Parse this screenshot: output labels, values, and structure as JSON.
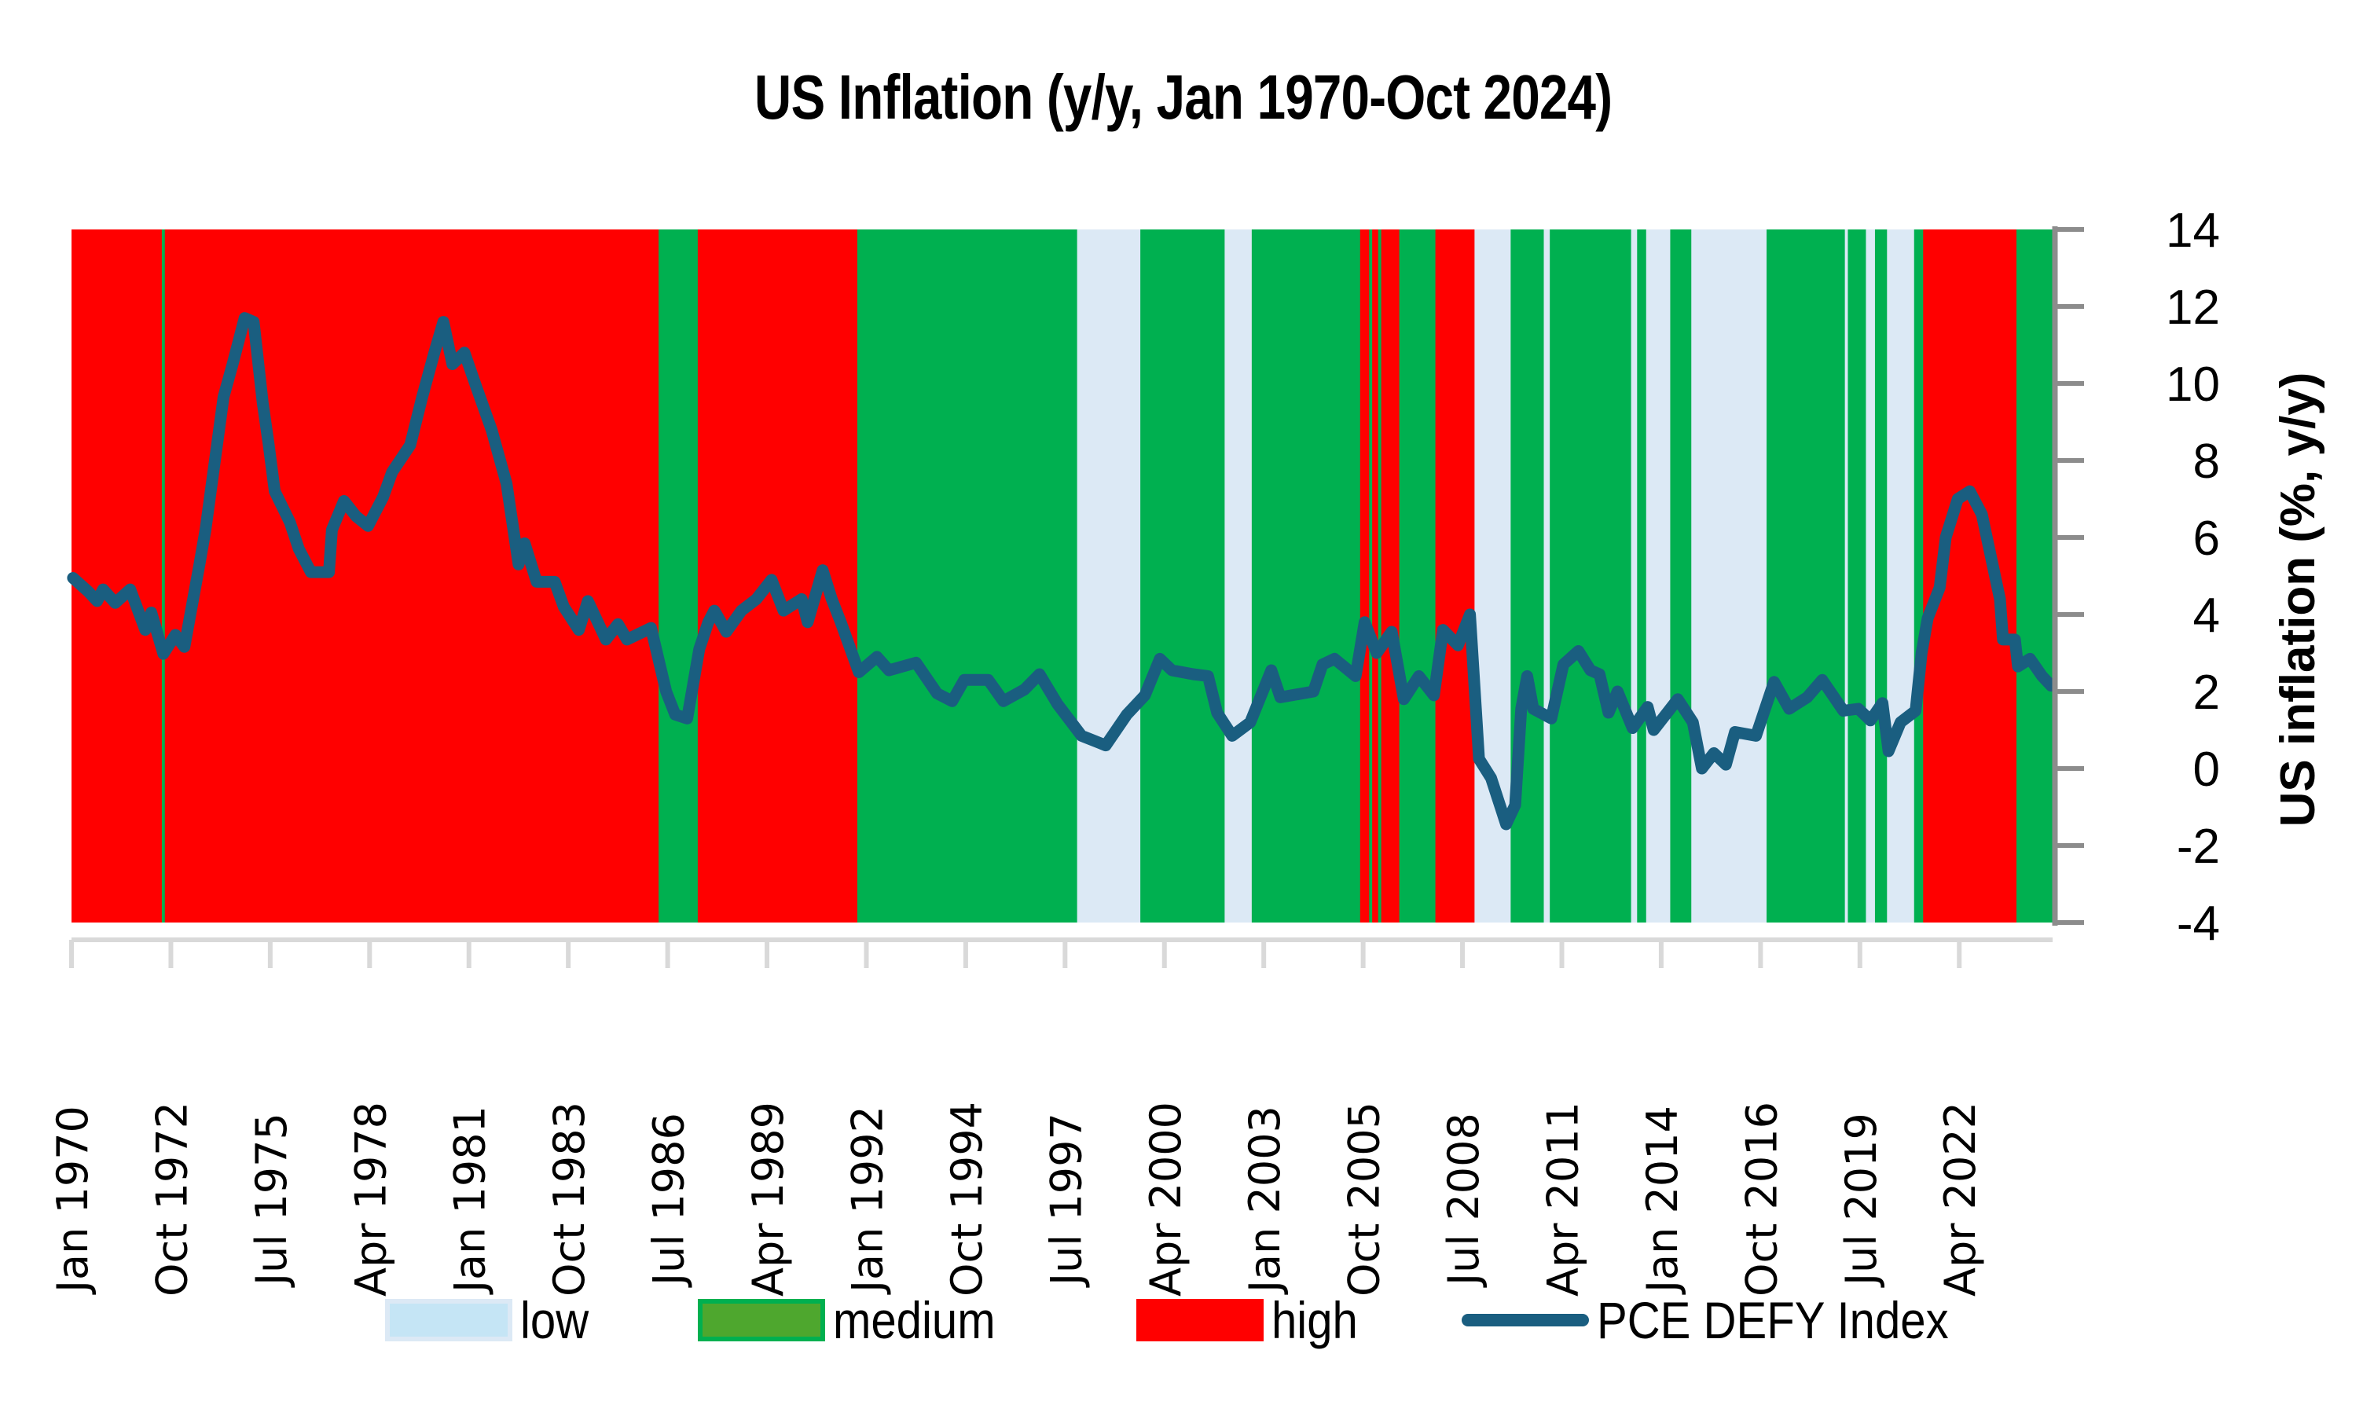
{
  "chart_data": {
    "type": "line",
    "title": "US Inflation (y/y, Jan 1970-Oct 2024)",
    "ylabel": "US inflation (%, y/y)",
    "xlabel": "",
    "y_axis_side": "right",
    "ylim": [
      -4,
      14
    ],
    "yticks": [
      14,
      12,
      10,
      8,
      6,
      4,
      2,
      0,
      -2,
      -4
    ],
    "x_start": "Jan 1970",
    "x_end": "Oct 2024",
    "n_months": 658,
    "xtick_every_months": 33,
    "xtick_labels": [
      "Jan 1970",
      "Oct 1972",
      "Jul 1975",
      "Apr 1978",
      "Jan 1981",
      "Oct 1983",
      "Jul 1986",
      "Apr 1989",
      "Jan 1992",
      "Oct 1994",
      "Jul 1997",
      "Apr 2000",
      "Jan 2003",
      "Oct 2005",
      "Jul 2008",
      "Apr 2011",
      "Jan 2014",
      "Oct 2016",
      "Jul 2019",
      "Apr 2022"
    ],
    "legend_placement": "bottom",
    "legend": [
      {
        "key": "low",
        "label": "low",
        "fill": "#C5E5F5",
        "border": "#DCE9F5",
        "band_color": "#DCE9F5"
      },
      {
        "key": "medium",
        "label": "medium",
        "fill": "#4EA72E",
        "border": "#00B050",
        "band_color": "#00B050"
      },
      {
        "key": "high",
        "label": "high",
        "fill": "#FF0000",
        "border": "#FF0000",
        "band_color": "#FF0000"
      },
      {
        "key": "line",
        "label": "PCE DEFY Index",
        "color": "#1A5E80"
      }
    ],
    "regime_bands": [
      [
        0,
        29,
        "high"
      ],
      [
        30,
        30,
        "medium"
      ],
      [
        31,
        194,
        "high"
      ],
      [
        195,
        207,
        "medium"
      ],
      [
        208,
        260,
        "high"
      ],
      [
        261,
        333,
        "medium"
      ],
      [
        334,
        354,
        "low"
      ],
      [
        355,
        382,
        "medium"
      ],
      [
        383,
        391,
        "low"
      ],
      [
        392,
        427,
        "medium"
      ],
      [
        428,
        430,
        "high"
      ],
      [
        431,
        431,
        "medium"
      ],
      [
        432,
        433,
        "high"
      ],
      [
        434,
        434,
        "medium"
      ],
      [
        435,
        440,
        "high"
      ],
      [
        441,
        452,
        "medium"
      ],
      [
        453,
        465,
        "high"
      ],
      [
        466,
        477,
        "low"
      ],
      [
        478,
        488,
        "medium"
      ],
      [
        489,
        490,
        "low"
      ],
      [
        491,
        517,
        "medium"
      ],
      [
        518,
        519,
        "low"
      ],
      [
        520,
        522,
        "medium"
      ],
      [
        523,
        530,
        "low"
      ],
      [
        531,
        537,
        "medium"
      ],
      [
        538,
        562,
        "low"
      ],
      [
        563,
        588,
        "medium"
      ],
      [
        589,
        589,
        "low"
      ],
      [
        590,
        595,
        "medium"
      ],
      [
        596,
        598,
        "low"
      ],
      [
        599,
        602,
        "medium"
      ],
      [
        603,
        611,
        "low"
      ],
      [
        612,
        614,
        "medium"
      ],
      [
        615,
        645,
        "high"
      ],
      [
        646,
        657,
        "medium"
      ]
    ],
    "series": [
      {
        "name": "PCE DEFY Index",
        "color": "#1A5E80",
        "points_month_value": [
          [
            0,
            4.95
          ],
          [
            5,
            4.6
          ],
          [
            8,
            4.35
          ],
          [
            10,
            4.65
          ],
          [
            14,
            4.3
          ],
          [
            19,
            4.65
          ],
          [
            24,
            3.6
          ],
          [
            26,
            4.05
          ],
          [
            30,
            2.98
          ],
          [
            34,
            3.47
          ],
          [
            37,
            3.16
          ],
          [
            42,
            5.3
          ],
          [
            44,
            6.2
          ],
          [
            50,
            9.65
          ],
          [
            53,
            10.5
          ],
          [
            57,
            11.7
          ],
          [
            60,
            11.6
          ],
          [
            63,
            9.5
          ],
          [
            65,
            8.4
          ],
          [
            67,
            7.2
          ],
          [
            72,
            6.4
          ],
          [
            75,
            5.7
          ],
          [
            79,
            5.1
          ],
          [
            85,
            5.1
          ],
          [
            86,
            6.2
          ],
          [
            90,
            6.95
          ],
          [
            94,
            6.55
          ],
          [
            98,
            6.3
          ],
          [
            103,
            7.05
          ],
          [
            106,
            7.7
          ],
          [
            112,
            8.4
          ],
          [
            116,
            9.65
          ],
          [
            120,
            10.8
          ],
          [
            123,
            11.6
          ],
          [
            126,
            10.5
          ],
          [
            130,
            10.8
          ],
          [
            134,
            9.9
          ],
          [
            139,
            8.8
          ],
          [
            144,
            7.4
          ],
          [
            148,
            5.3
          ],
          [
            150,
            5.85
          ],
          [
            154,
            4.85
          ],
          [
            160,
            4.85
          ],
          [
            163,
            4.2
          ],
          [
            168,
            3.6
          ],
          [
            171,
            4.35
          ],
          [
            177,
            3.35
          ],
          [
            181,
            3.75
          ],
          [
            184,
            3.35
          ],
          [
            192,
            3.65
          ],
          [
            197,
            2.0
          ],
          [
            200,
            1.4
          ],
          [
            204,
            1.3
          ],
          [
            208,
            3.1
          ],
          [
            211,
            3.8
          ],
          [
            213,
            4.1
          ],
          [
            217,
            3.55
          ],
          [
            222,
            4.1
          ],
          [
            227,
            4.4
          ],
          [
            232,
            4.9
          ],
          [
            236,
            4.1
          ],
          [
            242,
            4.4
          ],
          [
            244,
            3.8
          ],
          [
            249,
            5.15
          ],
          [
            252,
            4.4
          ],
          [
            255,
            3.8
          ],
          [
            261,
            2.5
          ],
          [
            267,
            2.9
          ],
          [
            271,
            2.55
          ],
          [
            280,
            2.75
          ],
          [
            287,
            1.95
          ],
          [
            292,
            1.75
          ],
          [
            296,
            2.3
          ],
          [
            304,
            2.3
          ],
          [
            309,
            1.75
          ],
          [
            316,
            2.05
          ],
          [
            321,
            2.45
          ],
          [
            327,
            1.67
          ],
          [
            335,
            0.85
          ],
          [
            343,
            0.6
          ],
          [
            350,
            1.4
          ],
          [
            356,
            1.9
          ],
          [
            361,
            2.85
          ],
          [
            365,
            2.55
          ],
          [
            372,
            2.45
          ],
          [
            377,
            2.4
          ],
          [
            380,
            1.45
          ],
          [
            385,
            0.85
          ],
          [
            391,
            1.2
          ],
          [
            398,
            2.55
          ],
          [
            401,
            1.85
          ],
          [
            412,
            2.0
          ],
          [
            415,
            2.7
          ],
          [
            419,
            2.85
          ],
          [
            426,
            2.4
          ],
          [
            429,
            3.8
          ],
          [
            433,
            3.0
          ],
          [
            438,
            3.55
          ],
          [
            442,
            1.8
          ],
          [
            447,
            2.4
          ],
          [
            452,
            1.9
          ],
          [
            455,
            3.6
          ],
          [
            460,
            3.2
          ],
          [
            464,
            4.0
          ],
          [
            467,
            0.25
          ],
          [
            471,
            -0.25
          ],
          [
            476,
            -1.45
          ],
          [
            479,
            -0.95
          ],
          [
            481,
            1.55
          ],
          [
            483,
            2.4
          ],
          [
            485,
            1.55
          ],
          [
            491,
            1.3
          ],
          [
            495,
            2.7
          ],
          [
            500,
            3.05
          ],
          [
            504,
            2.55
          ],
          [
            507,
            2.45
          ],
          [
            510,
            1.45
          ],
          [
            513,
            2.0
          ],
          [
            518,
            1.05
          ],
          [
            523,
            1.6
          ],
          [
            525,
            1.0
          ],
          [
            533,
            1.8
          ],
          [
            538,
            1.2
          ],
          [
            541,
            0.0
          ],
          [
            545,
            0.4
          ],
          [
            549,
            0.1
          ],
          [
            552,
            0.95
          ],
          [
            559,
            0.85
          ],
          [
            562,
            1.55
          ],
          [
            565,
            2.25
          ],
          [
            570,
            1.55
          ],
          [
            576,
            1.85
          ],
          [
            581,
            2.3
          ],
          [
            588,
            1.5
          ],
          [
            593,
            1.55
          ],
          [
            597,
            1.25
          ],
          [
            601,
            1.7
          ],
          [
            603,
            0.45
          ],
          [
            607,
            1.2
          ],
          [
            612,
            1.5
          ],
          [
            614,
            3.0
          ],
          [
            616,
            3.9
          ],
          [
            620,
            4.7
          ],
          [
            622,
            6.0
          ],
          [
            626,
            7.0
          ],
          [
            630,
            7.2
          ],
          [
            634,
            6.6
          ],
          [
            637,
            5.5
          ],
          [
            640,
            4.4
          ],
          [
            641,
            3.35
          ],
          [
            645,
            3.35
          ],
          [
            646,
            2.65
          ],
          [
            650,
            2.85
          ],
          [
            654,
            2.4
          ],
          [
            657,
            2.15
          ]
        ]
      }
    ]
  }
}
